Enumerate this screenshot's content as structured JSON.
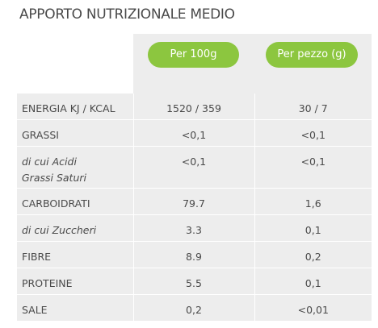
{
  "title": "APPORTO NUTRIZIONALE MEDIO",
  "columns": [
    "Per 100g",
    "Per pezzo (g)"
  ],
  "rows": [
    {
      "label": "ENERGIA KJ / KCAL",
      "per100": "1520 / 359",
      "perPiece": "30 / 7",
      "italic": false
    },
    {
      "label": "GRASSI",
      "per100": "<0,1",
      "perPiece": "<0,1",
      "italic": false
    },
    {
      "label": "di cui Acidi\nGrassi Saturi",
      "per100": "<0,1",
      "perPiece": "<0,1",
      "italic": true
    },
    {
      "label": "CARBOIDRATI",
      "per100": "79.7",
      "perPiece": "1,6",
      "italic": false
    },
    {
      "label": "di cui Zuccheri",
      "per100": "3.3",
      "perPiece": "0,1",
      "italic": true
    },
    {
      "label": "FIBRE",
      "per100": "8.9",
      "perPiece": "0,2",
      "italic": false
    },
    {
      "label": "PROTEINE",
      "per100": "5.5",
      "perPiece": "0,1",
      "italic": false
    },
    {
      "label": "SALE",
      "per100": "0,2",
      "perPiece": "<0,01",
      "italic": false
    }
  ],
  "colors": {
    "pill": "#8cc63f",
    "cell": "#ededed",
    "text": "#4a4a4a"
  }
}
